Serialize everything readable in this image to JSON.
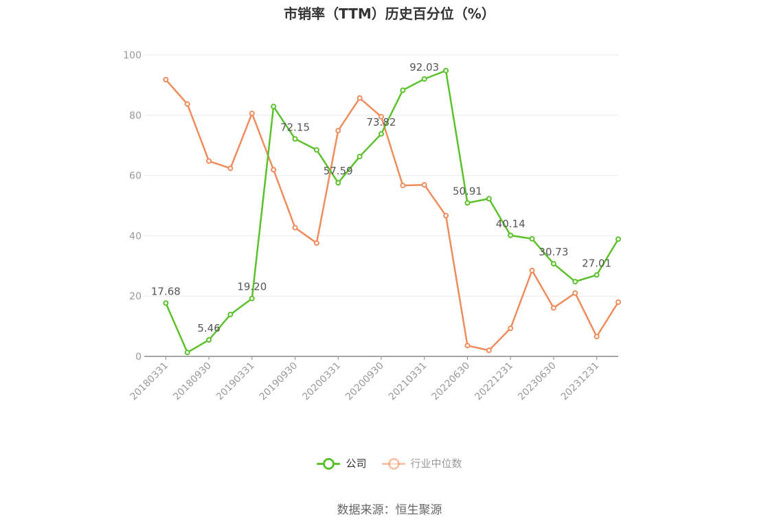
{
  "chart_data": {
    "type": "line",
    "title": "市销率（TTM）历史百分位（%）",
    "xlabel": "",
    "ylabel": "",
    "ylim": [
      0,
      100
    ],
    "yticks": [
      0,
      20,
      40,
      60,
      80,
      100
    ],
    "grid": true,
    "legend_position": "bottom",
    "categories": [
      "20180331",
      "20180630",
      "20180930",
      "20181231",
      "20190331",
      "20190630",
      "20190930",
      "20191231",
      "20200331",
      "20200630",
      "20200930",
      "20201231",
      "20210331",
      "20210630",
      "20220630",
      "20220930",
      "20221231",
      "20230331",
      "20230630",
      "20230930",
      "20231231",
      "20240331"
    ],
    "x_tick_labels": [
      "20180331",
      "20180930",
      "20190331",
      "20190930",
      "20200331",
      "20200930",
      "20210331",
      "20220630",
      "20221231",
      "20230630",
      "20231231"
    ],
    "series": [
      {
        "name": "公司",
        "color": "#5ac12b",
        "values": [
          17.68,
          1.3,
          5.46,
          13.9,
          19.2,
          82.9,
          72.15,
          68.5,
          57.59,
          66.3,
          73.82,
          88.3,
          92.03,
          94.8,
          50.91,
          52.3,
          40.14,
          39.0,
          30.73,
          24.8,
          27.01,
          38.9
        ],
        "data_labels": [
          {
            "index": 0,
            "text": "17.68"
          },
          {
            "index": 2,
            "text": "5.46"
          },
          {
            "index": 4,
            "text": "19.20"
          },
          {
            "index": 6,
            "text": "72.15"
          },
          {
            "index": 8,
            "text": "57.59"
          },
          {
            "index": 10,
            "text": "73.82"
          },
          {
            "index": 12,
            "text": "92.03"
          },
          {
            "index": 14,
            "text": "50.91"
          },
          {
            "index": 16,
            "text": "40.14"
          },
          {
            "index": 18,
            "text": "30.73"
          },
          {
            "index": 20,
            "text": "27.01"
          }
        ]
      },
      {
        "name": "行业中位数",
        "color": "#f08b5c",
        "values": [
          91.8,
          83.7,
          64.8,
          62.4,
          80.6,
          61.9,
          42.7,
          37.6,
          74.9,
          85.7,
          79.5,
          56.7,
          56.9,
          46.7,
          3.6,
          2.0,
          9.3,
          28.5,
          16.1,
          21.0,
          6.6,
          18.0
        ],
        "data_labels": []
      }
    ]
  },
  "legend": {
    "items": [
      {
        "label": "公司",
        "color": "#5ac12b",
        "muted": false
      },
      {
        "label": "行业中位数",
        "color": "#f08b5c",
        "muted": true
      }
    ]
  },
  "footer": {
    "source": "数据来源：恒生聚源"
  }
}
